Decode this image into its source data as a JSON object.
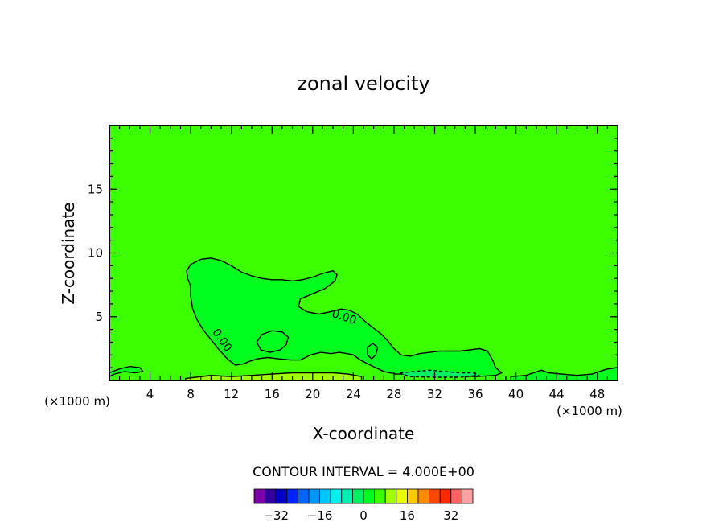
{
  "chart_data": {
    "type": "heatmap",
    "title": "zonal velocity",
    "xlabel": "X-coordinate",
    "ylabel": "Z-coordinate",
    "x_unit_label": "(×1000 m)",
    "xlim": [
      0,
      50
    ],
    "ylim": [
      0,
      20
    ],
    "x_ticks": [
      4,
      8,
      12,
      16,
      20,
      24,
      28,
      32,
      36,
      40,
      44,
      48
    ],
    "y_ticks": [
      5,
      10,
      15
    ],
    "contour_interval_text": "CONTOUR INTERVAL =  4.000E+00",
    "contour_labels": [
      {
        "text": "0.00",
        "x": 23.0,
        "z": 4.7,
        "angle": 18
      },
      {
        "text": "0.00",
        "x": 10.8,
        "z": 3.0,
        "angle": 55
      }
    ],
    "background_value": 4,
    "regions": [
      {
        "value": 0,
        "outline": [
          [
            7.7,
            8.0
          ],
          [
            7.6,
            8.6
          ],
          [
            8.0,
            9.1
          ],
          [
            9.0,
            9.5
          ],
          [
            10.0,
            9.6
          ],
          [
            11.0,
            9.4
          ],
          [
            12.0,
            9.0
          ],
          [
            13.0,
            8.5
          ],
          [
            14.0,
            8.2
          ],
          [
            15.0,
            8.0
          ],
          [
            16.0,
            7.9
          ],
          [
            17.0,
            7.9
          ],
          [
            18.0,
            7.8
          ],
          [
            19.0,
            7.9
          ],
          [
            20.0,
            8.1
          ],
          [
            21.0,
            8.4
          ],
          [
            22.0,
            8.6
          ],
          [
            22.4,
            8.3
          ],
          [
            22.2,
            7.8
          ],
          [
            21.2,
            7.2
          ],
          [
            20.0,
            6.8
          ],
          [
            18.8,
            6.4
          ],
          [
            18.6,
            5.8
          ],
          [
            19.4,
            5.4
          ],
          [
            20.6,
            5.2
          ],
          [
            21.8,
            5.4
          ],
          [
            22.8,
            5.6
          ],
          [
            23.6,
            5.5
          ],
          [
            24.4,
            5.2
          ],
          [
            25.2,
            4.6
          ],
          [
            26.0,
            4.1
          ],
          [
            26.8,
            3.6
          ],
          [
            27.4,
            3.1
          ],
          [
            28.0,
            2.5
          ],
          [
            28.7,
            2.0
          ],
          [
            29.6,
            1.9
          ],
          [
            30.5,
            2.1
          ],
          [
            31.5,
            2.2
          ],
          [
            32.5,
            2.3
          ],
          [
            33.5,
            2.3
          ],
          [
            34.5,
            2.3
          ],
          [
            35.5,
            2.4
          ],
          [
            36.4,
            2.5
          ],
          [
            37.2,
            2.3
          ],
          [
            37.7,
            1.6
          ],
          [
            38.0,
            1.0
          ],
          [
            38.6,
            0.6
          ],
          [
            38.0,
            0.4
          ],
          [
            36.0,
            0.3
          ],
          [
            34.0,
            0.4
          ],
          [
            32.0,
            0.4
          ],
          [
            30.0,
            0.5
          ],
          [
            28.2,
            0.5
          ],
          [
            27.0,
            0.7
          ],
          [
            26.2,
            1.0
          ],
          [
            25.4,
            1.3
          ],
          [
            24.7,
            1.6
          ],
          [
            24.0,
            2.0
          ],
          [
            23.4,
            2.1
          ],
          [
            22.6,
            2.2
          ],
          [
            21.8,
            2.1
          ],
          [
            20.8,
            2.2
          ],
          [
            19.8,
            2.0
          ],
          [
            18.8,
            1.6
          ],
          [
            17.8,
            1.6
          ],
          [
            16.6,
            1.7
          ],
          [
            15.6,
            1.8
          ],
          [
            14.6,
            1.7
          ],
          [
            13.8,
            1.5
          ],
          [
            13.2,
            1.3
          ],
          [
            12.4,
            1.2
          ],
          [
            11.6,
            1.7
          ],
          [
            10.8,
            2.4
          ],
          [
            10.0,
            3.2
          ],
          [
            9.2,
            4.0
          ],
          [
            8.6,
            4.8
          ],
          [
            8.2,
            5.6
          ],
          [
            8.0,
            6.6
          ],
          [
            8.0,
            7.4
          ]
        ]
      },
      {
        "value": 0,
        "outline": [
          [
            14.5,
            3.0
          ],
          [
            15.0,
            3.6
          ],
          [
            16.0,
            3.9
          ],
          [
            17.0,
            3.8
          ],
          [
            17.6,
            3.4
          ],
          [
            17.4,
            2.8
          ],
          [
            16.8,
            2.4
          ],
          [
            15.8,
            2.2
          ],
          [
            14.9,
            2.4
          ]
        ]
      },
      {
        "value": 0,
        "outline": [
          [
            25.4,
            2.6
          ],
          [
            25.9,
            2.9
          ],
          [
            26.4,
            2.6
          ],
          [
            26.2,
            2.0
          ],
          [
            25.8,
            1.7
          ],
          [
            25.4,
            2.0
          ]
        ]
      },
      {
        "value": 0,
        "outline": [
          [
            0,
            0.6
          ],
          [
            1.0,
            0.9
          ],
          [
            2.0,
            1.1
          ],
          [
            3.0,
            1.0
          ],
          [
            3.3,
            0.7
          ],
          [
            2.5,
            0.6
          ],
          [
            1.5,
            0.7
          ],
          [
            0.5,
            0.5
          ],
          [
            0,
            0.3
          ]
        ]
      },
      {
        "value": 0,
        "outline": [
          [
            39.5,
            0.3
          ],
          [
            41.0,
            0.4
          ],
          [
            42.5,
            0.8
          ],
          [
            43.2,
            0.6
          ],
          [
            44.5,
            0.5
          ],
          [
            46.0,
            0.4
          ],
          [
            47.5,
            0.5
          ],
          [
            48.2,
            0.7
          ],
          [
            49.0,
            0.9
          ],
          [
            50.0,
            1.0
          ],
          [
            50.0,
            0.0
          ],
          [
            39.5,
            0.0
          ]
        ]
      },
      {
        "value": -4,
        "outline": [
          [
            28.6,
            0.6
          ],
          [
            30.0,
            0.7
          ],
          [
            31.5,
            0.8
          ],
          [
            33.0,
            0.7
          ],
          [
            34.5,
            0.6
          ],
          [
            35.8,
            0.6
          ],
          [
            36.4,
            0.4
          ],
          [
            34.5,
            0.25
          ],
          [
            32.0,
            0.25
          ],
          [
            29.5,
            0.3
          ]
        ]
      },
      {
        "value": 8,
        "outline": [
          [
            7.5,
            0.15
          ],
          [
            10.0,
            0.4
          ],
          [
            12.0,
            0.3
          ],
          [
            14.0,
            0.4
          ],
          [
            16.0,
            0.5
          ],
          [
            18.0,
            0.6
          ],
          [
            20.0,
            0.6
          ],
          [
            22.0,
            0.6
          ],
          [
            23.5,
            0.5
          ],
          [
            24.8,
            0.3
          ],
          [
            24.8,
            0.0
          ],
          [
            7.5,
            0.0
          ]
        ]
      }
    ],
    "colorbar": {
      "tick_labels": [
        "−32",
        "−16",
        "0",
        "16",
        "32"
      ],
      "tick_values": [
        -32,
        -16,
        0,
        16,
        32
      ],
      "levels": [
        -36,
        -32,
        -28,
        -24,
        -20,
        -16,
        -12,
        -8,
        -4,
        0,
        4,
        8,
        12,
        16,
        20,
        24,
        28,
        32,
        36
      ],
      "colors": [
        "#7a00a8",
        "#33009e",
        "#0000c8",
        "#0024ff",
        "#0064ff",
        "#0096ff",
        "#00c8ff",
        "#00f0f0",
        "#00f0b4",
        "#00f064",
        "#00ff1e",
        "#3cff00",
        "#a0ff00",
        "#e6ff00",
        "#ffc800",
        "#ff8c00",
        "#ff4600",
        "#ff2800",
        "#ff6464",
        "#ffa0a0"
      ]
    }
  }
}
